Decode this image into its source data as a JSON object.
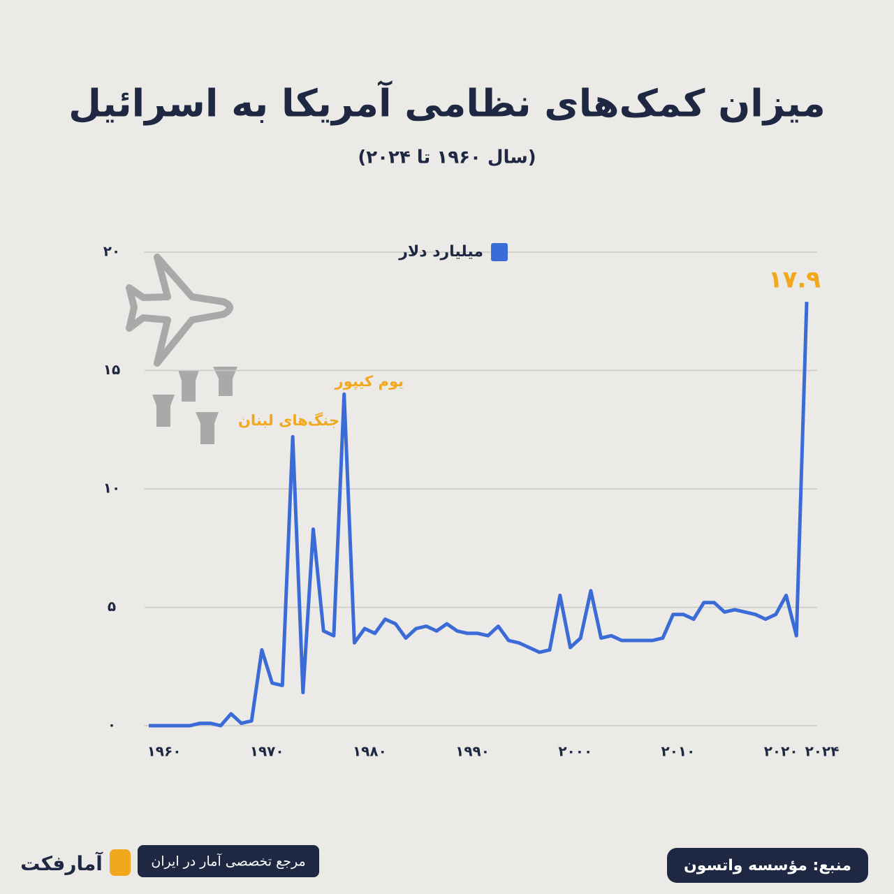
{
  "chart_data": {
    "type": "line",
    "title": "میزان کمک‌های نظامی آمریکا به اسرائیل",
    "subtitle": "(سال ۱۹۶۰ تا ۲۰۲۴)",
    "x": [
      1960,
      1961,
      1962,
      1963,
      1964,
      1965,
      1966,
      1967,
      1968,
      1969,
      1970,
      1971,
      1972,
      1973,
      1974,
      1975,
      1976,
      1977,
      1978,
      1979,
      1980,
      1981,
      1982,
      1983,
      1984,
      1985,
      1986,
      1987,
      1988,
      1989,
      1990,
      1991,
      1992,
      1993,
      1994,
      1995,
      1996,
      1997,
      1998,
      1999,
      2000,
      2001,
      2002,
      2003,
      2004,
      2005,
      2006,
      2007,
      2008,
      2009,
      2010,
      2011,
      2012,
      2013,
      2014,
      2015,
      2016,
      2017,
      2018,
      2019,
      2020,
      2021,
      2022,
      2023,
      2024
    ],
    "series": [
      {
        "name": "میلیارد دلار",
        "color": "#3b6bd6",
        "values": [
          0,
          0,
          0,
          0,
          0,
          0.1,
          0.1,
          0,
          0.5,
          0.1,
          0.2,
          3.2,
          1.8,
          1.7,
          12.2,
          1.4,
          8.3,
          4.0,
          3.8,
          14.0,
          3.5,
          4.1,
          3.9,
          4.5,
          4.3,
          3.7,
          4.1,
          4.2,
          4.0,
          4.3,
          4.0,
          3.9,
          3.9,
          3.8,
          4.2,
          3.6,
          3.5,
          3.3,
          3.1,
          3.2,
          5.5,
          3.3,
          3.7,
          5.7,
          3.7,
          3.8,
          3.6,
          3.6,
          3.6,
          3.6,
          3.7,
          4.7,
          4.7,
          4.5,
          5.2,
          5.2,
          4.8,
          4.9,
          4.8,
          4.7,
          4.5,
          4.7,
          5.5,
          3.8,
          17.9
        ],
        "value_labels": [
          null,
          null,
          null,
          null,
          null,
          null,
          null,
          null,
          null,
          null,
          null,
          null,
          null,
          null,
          null,
          null,
          null,
          null,
          null,
          null,
          null,
          null,
          null,
          null,
          null,
          null,
          null,
          null,
          null,
          null,
          null,
          null,
          null,
          null,
          null,
          null,
          null,
          null,
          null,
          null,
          null,
          null,
          null,
          null,
          null,
          null,
          null,
          null,
          null,
          null,
          null,
          null,
          null,
          null,
          null,
          null,
          null,
          null,
          null,
          null,
          null,
          null,
          null,
          null,
          "۱۷.۹"
        ]
      }
    ],
    "xlim": [
      1960,
      2024
    ],
    "xticks": [
      {
        "value": 1960,
        "label": "۱۹۶۰"
      },
      {
        "value": 1970,
        "label": "۱۹۷۰"
      },
      {
        "value": 1980,
        "label": "۱۹۸۰"
      },
      {
        "value": 1990,
        "label": "۱۹۹۰"
      },
      {
        "value": 2000,
        "label": "۲۰۰۰"
      },
      {
        "value": 2010,
        "label": "۲۰۱۰"
      },
      {
        "value": 2020,
        "label": "۲۰۲۰"
      },
      {
        "value": 2024,
        "label": "۲۰۲۴"
      }
    ],
    "ylim": [
      0,
      20
    ],
    "yticks": [
      {
        "value": 0,
        "label": "۰"
      },
      {
        "value": 5,
        "label": "۵"
      },
      {
        "value": 10,
        "label": "۱۰"
      },
      {
        "value": 15,
        "label": "۱۵"
      },
      {
        "value": 20,
        "label": "۲۰"
      }
    ],
    "grid": true,
    "annotations": [
      {
        "text": "یوم کیپور",
        "x": 1979
      },
      {
        "text": "جنگ‌های لبنان",
        "x": 1974
      }
    ]
  },
  "footer": {
    "source": "منبع: مؤسسه واتسون",
    "tagline": "مرجع تخصصی آمار در ایران",
    "logo": "آمارفکت"
  }
}
